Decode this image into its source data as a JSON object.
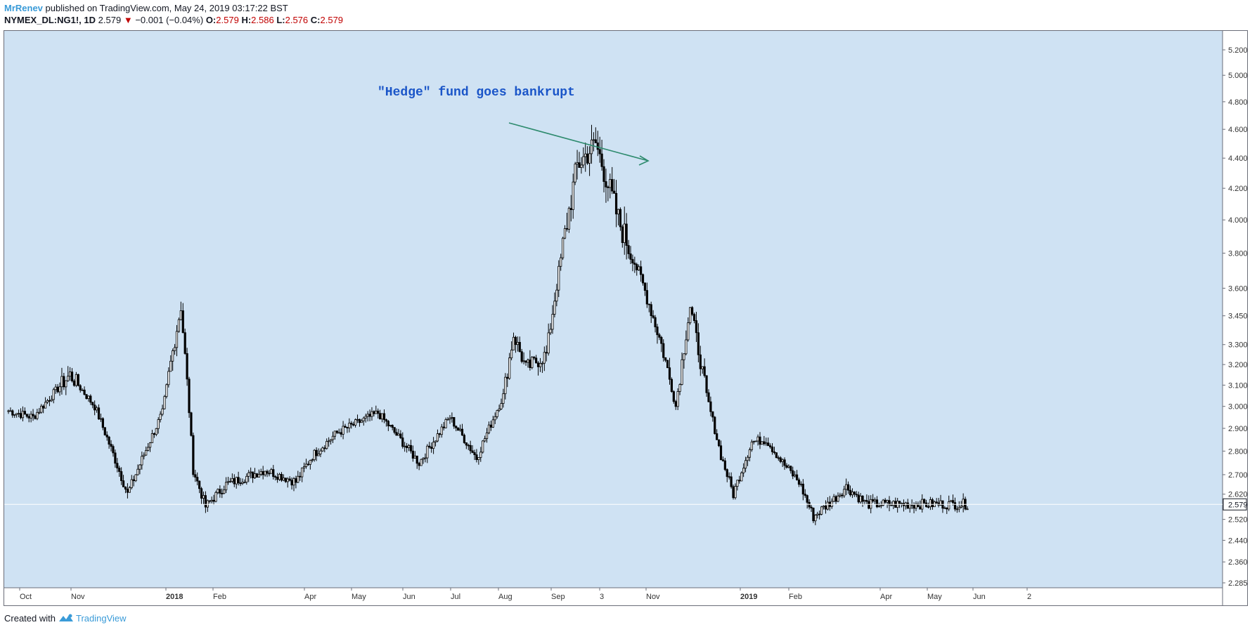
{
  "header": {
    "author": "MrRenev",
    "published_text": "published on TradingView.com, May 24, 2019 03:17:22 BST",
    "symbol": "NYMEX_DL:NG1!, 1D",
    "last_price": "2.579",
    "change": "−0.001 (−0.04%)",
    "open_label": "O:",
    "open_value": "2.579",
    "high_label": "H:",
    "high_value": "2.586",
    "low_label": "L:",
    "low_value": "2.576",
    "close_label": "C:",
    "close_value": "2.579",
    "down_arrow": "▼"
  },
  "footer": {
    "created_with": "Created with",
    "brand": "TradingView"
  },
  "colors": {
    "background": "#cfe2f3",
    "candle": "#000000",
    "arrow": "#2e8b6e",
    "annotation": "#1a55c8",
    "accent": "#3a9bd8"
  },
  "chart_data": {
    "type": "candlestick",
    "title": "NYMEX_DL:NG1!, 1D",
    "annotation": "\"Hedge\" fund goes bankrupt",
    "current_price_label": "2.579",
    "y_axis": {
      "scale": "log",
      "ylim": [
        2.285,
        5.25
      ],
      "ticks": [
        "5.200",
        "5.000",
        "4.800",
        "4.600",
        "4.400",
        "4.200",
        "4.000",
        "3.800",
        "3.600",
        "3.450",
        "3.300",
        "3.200",
        "3.100",
        "3.000",
        "2.900",
        "2.800",
        "2.700",
        "2.620",
        "2.520",
        "2.440",
        "2.360",
        "2.285"
      ]
    },
    "x_axis": {
      "ticks": [
        "Oct",
        "Nov",
        "2018",
        "Feb",
        "Apr",
        "May",
        "Jun",
        "Jul",
        "Aug",
        "Sep",
        "3",
        "Nov",
        "2019",
        "Feb",
        "Apr",
        "May",
        "Jun",
        "2"
      ],
      "bold_ticks": [
        "2018",
        "2019"
      ]
    },
    "series": [
      {
        "name": "close_anchor",
        "index": [
          0,
          12,
          30,
          42,
          58,
          75,
          84,
          90,
          96,
          106,
          125,
          140,
          148,
          160,
          180,
          200,
          215,
          228,
          241,
          246,
          252,
          262,
          277,
          286,
          297,
          309,
          318,
          325,
          332,
          340,
          347,
          353,
          362,
          369,
          377,
          385,
          392,
          402,
          408,
          418,
          425,
          437,
          453,
          467
        ],
        "close": [
          2.98,
          2.95,
          3.15,
          3.0,
          2.62,
          2.97,
          3.5,
          2.72,
          2.57,
          2.66,
          2.72,
          2.67,
          2.78,
          2.88,
          2.97,
          2.75,
          2.95,
          2.77,
          3.05,
          3.35,
          3.18,
          3.25,
          4.35,
          4.5,
          4.0,
          3.62,
          3.3,
          3.0,
          3.5,
          3.05,
          2.78,
          2.62,
          2.84,
          2.85,
          2.75,
          2.67,
          2.53,
          2.6,
          2.65,
          2.58,
          2.58,
          2.58,
          2.58,
          2.58
        ]
      },
      {
        "name": "last_bar",
        "values": [
          2.579,
          2.586,
          2.576,
          2.579
        ]
      }
    ]
  }
}
